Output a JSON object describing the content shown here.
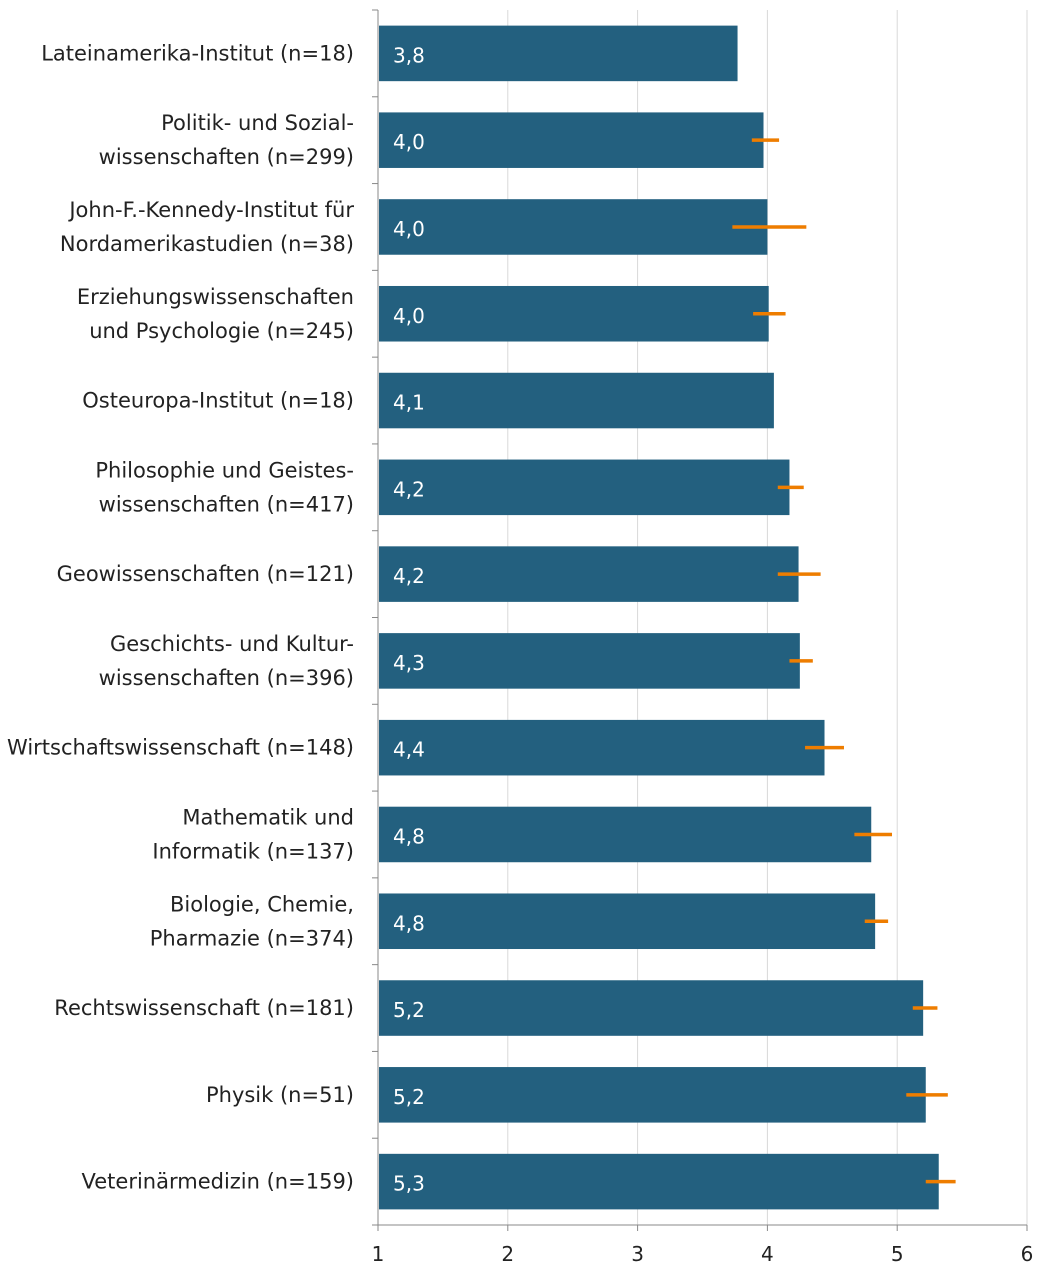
{
  "chart_data": {
    "type": "bar",
    "orientation": "horizontal",
    "title": "",
    "xlabel": "",
    "ylabel": "",
    "xlim": [
      1,
      6
    ],
    "xticks": [
      1,
      2,
      3,
      4,
      5,
      6
    ],
    "grid": true,
    "categories": [
      [
        "Lateinamerika-Institut (n=18)"
      ],
      [
        "Politik- und Sozial-",
        "wissenschaften (n=299)"
      ],
      [
        "John-F.-Kennedy-Institut für",
        "Nordamerikastudien (n=38)"
      ],
      [
        "Erziehungswissenschaften",
        "und Psychologie (n=245)"
      ],
      [
        "Osteuropa-Institut (n=18)"
      ],
      [
        "Philosophie und Geistes-",
        "wissenschaften (n=417)"
      ],
      [
        "Geowissenschaften (n=121)"
      ],
      [
        "Geschichts- und Kultur-",
        "wissenschaften (n=396)"
      ],
      [
        "Wirtschaftswissenschaft (n=148)"
      ],
      [
        "Mathematik und",
        "Informatik (n=137)"
      ],
      [
        "Biologie, Chemie,",
        "Pharmazie (n=374)"
      ],
      [
        "Rechtswissenschaft (n=181)"
      ],
      [
        "Physik (n=51)"
      ],
      [
        "Veterinärmedizin (n=159)"
      ]
    ],
    "values": [
      3.77,
      3.97,
      4.0,
      4.01,
      4.05,
      4.17,
      4.24,
      4.25,
      4.44,
      4.8,
      4.83,
      5.2,
      5.22,
      5.32
    ],
    "value_labels": [
      "3,8",
      "4,0",
      "4,0",
      "4,0",
      "4,1",
      "4,2",
      "4,2",
      "4,3",
      "4,4",
      "4,8",
      "4,8",
      "5,2",
      "5,2",
      "5,3"
    ],
    "error": [
      null,
      [
        3.88,
        4.09
      ],
      [
        3.73,
        4.3
      ],
      [
        3.89,
        4.14
      ],
      null,
      [
        4.08,
        4.28
      ],
      [
        4.08,
        4.41
      ],
      [
        4.17,
        4.35
      ],
      [
        4.29,
        4.59
      ],
      [
        4.67,
        4.96
      ],
      [
        4.75,
        4.93
      ],
      [
        5.12,
        5.31
      ],
      [
        5.07,
        5.39
      ],
      [
        5.22,
        5.45
      ]
    ],
    "colors": {
      "bar": "#23607f",
      "error": "#ee7d00",
      "grid": "#d9d9d9",
      "axis": "#888888"
    }
  }
}
